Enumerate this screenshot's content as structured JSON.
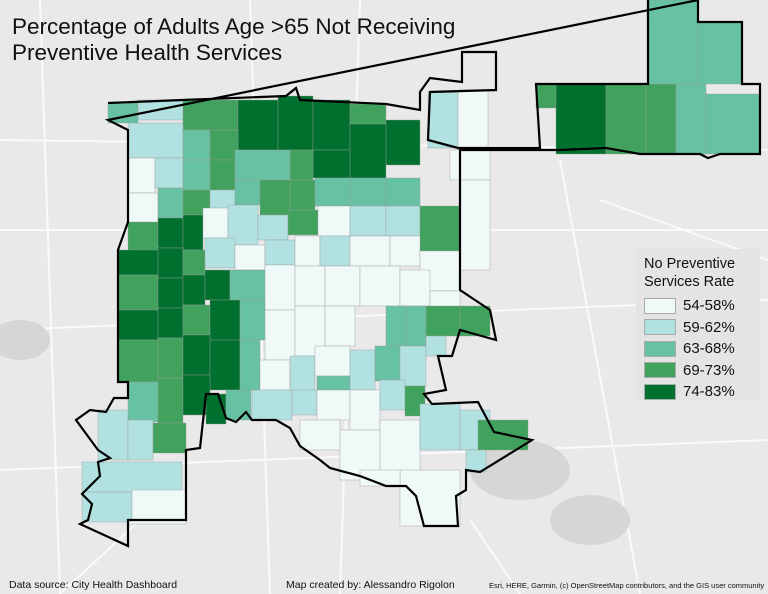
{
  "title": "Percentage of Adults Age >65 Not Receiving Preventive Health Services",
  "title_lines": [
    "Percentage of Adults Age >65 Not Receiving",
    "Preventive Health Services"
  ],
  "legend": {
    "title_lines": [
      "No Preventive",
      "Services Rate"
    ],
    "classes": [
      {
        "label": "54-58%",
        "color": "#eff9f8"
      },
      {
        "label": "59-62%",
        "color": "#b1e1e0"
      },
      {
        "label": "63-68%",
        "color": "#66c2a3"
      },
      {
        "label": "69-73%",
        "color": "#41a25e"
      },
      {
        "label": "74-83%",
        "color": "#00702e"
      }
    ]
  },
  "footer": {
    "source": "Data source: City Health Dashboard",
    "author": "Map created by: Alessandro Rigolon",
    "credits": "Esri, HERE, Garmin, (c) OpenStreetMap contributors, and the GIS user community"
  },
  "basemap_color": "#e9e9e9"
}
